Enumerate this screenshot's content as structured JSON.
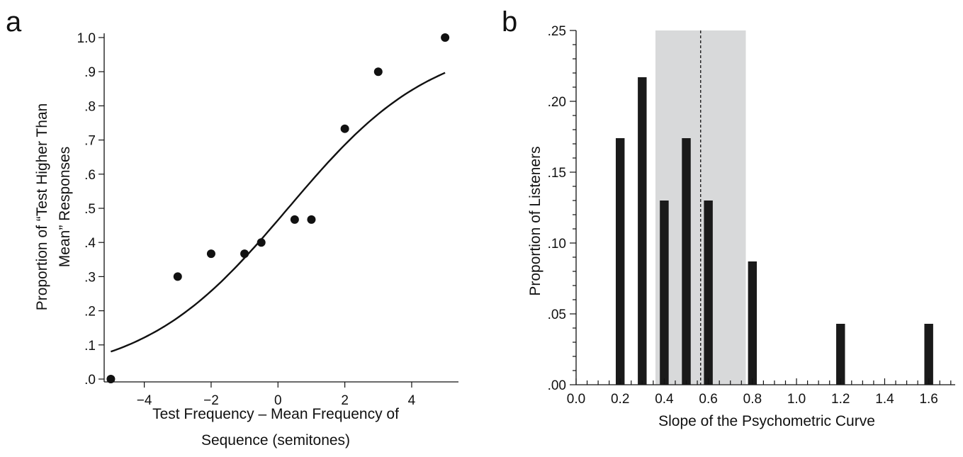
{
  "chart_data": [
    {
      "panel_label": "a",
      "type": "scatter",
      "xlabel": [
        "Test Frequency – Mean Frequency  of",
        "Sequence (semitones)"
      ],
      "ylabel": [
        "Proportion of “Test Higher Than",
        "Mean” Responses"
      ],
      "xlim": [
        -5.2,
        5.4
      ],
      "ylim": [
        0,
        1.0
      ],
      "xticks": [
        -4,
        -2,
        0,
        2,
        4
      ],
      "xtick_labels": [
        "−4",
        "−2",
        "0",
        "2",
        "4"
      ],
      "yticks": [
        0,
        0.1,
        0.2,
        0.3,
        0.4,
        0.5,
        0.6,
        0.7,
        0.8,
        0.9,
        1.0
      ],
      "ytick_labels": [
        ".0",
        ".1",
        ".2",
        ".3",
        ".4",
        ".5",
        ".6",
        ".7",
        ".8",
        ".9",
        "1.0"
      ],
      "points": [
        {
          "x": -5,
          "y": 0.0
        },
        {
          "x": -3,
          "y": 0.3
        },
        {
          "x": -2,
          "y": 0.367
        },
        {
          "x": -1,
          "y": 0.367
        },
        {
          "x": -0.5,
          "y": 0.4
        },
        {
          "x": 0.5,
          "y": 0.467
        },
        {
          "x": 1,
          "y": 0.467
        },
        {
          "x": 2,
          "y": 0.733
        },
        {
          "x": 3,
          "y": 0.9
        },
        {
          "x": 5,
          "y": 1.0
        }
      ],
      "fit_curve": {
        "x_range": [
          -5,
          5
        ],
        "shape": "logistic",
        "midpoint": 0.3,
        "slope": 0.46
      },
      "grid": false
    },
    {
      "panel_label": "b",
      "type": "bar",
      "xlabel": "Slope of the Psychometric Curve",
      "ylabel": "Proportion of Listeners",
      "xlim": [
        0.0,
        1.72
      ],
      "ylim": [
        0.0,
        0.25
      ],
      "xticks": [
        0.0,
        0.2,
        0.4,
        0.6,
        0.8,
        1.0,
        1.2,
        1.4,
        1.6
      ],
      "xtick_labels": [
        "0.0",
        "0.2",
        "0.4",
        "0.6",
        "0.8",
        "1.0",
        "1.2",
        "1.4",
        "1.6"
      ],
      "yticks": [
        0.0,
        0.05,
        0.1,
        0.15,
        0.2,
        0.25
      ],
      "ytick_labels": [
        ".00",
        ".05",
        ".10",
        ".15",
        ".20",
        ".25"
      ],
      "bar_width": 0.04,
      "bars": [
        {
          "x": 0.2,
          "value": 0.174
        },
        {
          "x": 0.3,
          "value": 0.217
        },
        {
          "x": 0.4,
          "value": 0.13
        },
        {
          "x": 0.5,
          "value": 0.174
        },
        {
          "x": 0.6,
          "value": 0.13
        },
        {
          "x": 0.8,
          "value": 0.087
        },
        {
          "x": 1.2,
          "value": 0.043
        },
        {
          "x": 1.6,
          "value": 0.043
        }
      ],
      "shaded_region": [
        0.36,
        0.77
      ],
      "mean_line": 0.565,
      "bar_color": "#1a1a1a",
      "shade_color": "#d8d9da",
      "grid": false
    }
  ]
}
